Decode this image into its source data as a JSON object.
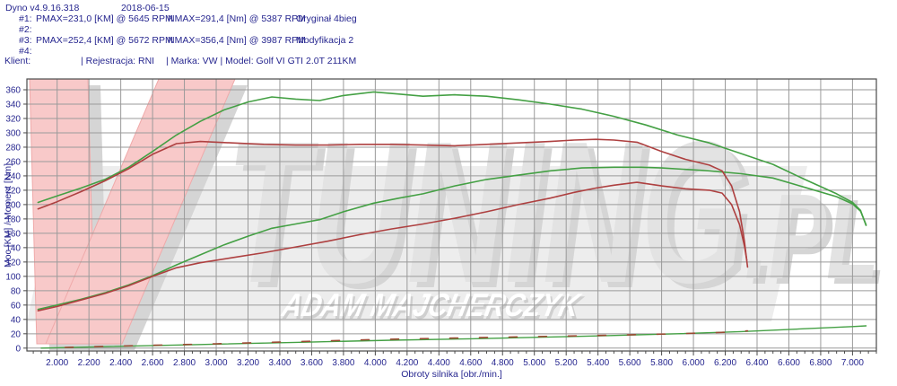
{
  "header": {
    "app": "Dyno v4.9.16.318",
    "date": "2018-06-15",
    "runs": [
      {
        "id": "#1:",
        "pmax": "PMAX=231,0 [KM] @ 5645 RPM",
        "nmax": "NMAX=291,4 [Nm] @ 5387 RPM",
        "name": "Oryginał 4bieg"
      },
      {
        "id": "#2:",
        "pmax": "",
        "nmax": "",
        "name": ""
      },
      {
        "id": "#3:",
        "pmax": "PMAX=252,4 [KM] @ 5672 RPM",
        "nmax": "NMAX=356,4 [Nm] @ 3987 RPM",
        "name": "Modyfikacja 2"
      },
      {
        "id": "#4:",
        "pmax": "",
        "nmax": "",
        "name": ""
      }
    ],
    "client": {
      "label": "Klient:",
      "registration": "| Rejestracja: RNI",
      "make_model": "| Marka: VW | Model: Golf VI GTI 2.0T 211KM"
    }
  },
  "chart_data": {
    "type": "line",
    "xlabel": "Obroty silnika [obr./min.]",
    "ylabel": "Moc [KM] / Moment [Nm]",
    "xlim": [
      1810,
      7150
    ],
    "ylim": [
      -4,
      375
    ],
    "grid": true,
    "x_ticks": {
      "values": [
        2000,
        2200,
        2400,
        2600,
        2800,
        3000,
        3200,
        3400,
        3600,
        3800,
        4000,
        4200,
        4400,
        4600,
        4800,
        5000,
        5200,
        5400,
        5600,
        5800,
        6000,
        6200,
        6400,
        6600,
        6800,
        7000
      ],
      "labels": [
        "2.000",
        "2.200",
        "2.400",
        "2.600",
        "2.800",
        "3.000",
        "3.200",
        "3.400",
        "3.600",
        "3.800",
        "4.000",
        "4.200",
        "4.400",
        "4.600",
        "4.800",
        "5.000",
        "5.200",
        "5.400",
        "5.600",
        "5.800",
        "6.000",
        "6.200",
        "6.400",
        "6.600",
        "6.800",
        "7.000"
      ],
      "minor_step": 50
    },
    "y_ticks": {
      "values": [
        0,
        20,
        40,
        60,
        80,
        100,
        120,
        140,
        160,
        180,
        200,
        220,
        240,
        260,
        280,
        300,
        320,
        340,
        360
      ],
      "labels": [
        "0",
        "20",
        "40",
        "60",
        "80",
        "100",
        "120",
        "140",
        "160",
        "180",
        "200",
        "220",
        "240",
        "260",
        "280",
        "300",
        "320",
        "340",
        "360"
      ]
    },
    "colors": {
      "grid": "#9a9a9a",
      "border": "#4a4a4a",
      "axis_text": "#26268f",
      "green": "#44a044",
      "red": "#ae4040",
      "aux_red": "#9b4a33"
    },
    "series": [
      {
        "name": "aux-modified",
        "color": "#44a044",
        "width": 1.4,
        "dash": "",
        "points": [
          [
            1900,
            0
          ],
          [
            2300,
            2
          ],
          [
            2900,
            5
          ],
          [
            3500,
            8
          ],
          [
            4100,
            11
          ],
          [
            4600,
            13
          ],
          [
            5000,
            15
          ],
          [
            5400,
            17
          ],
          [
            5900,
            20
          ],
          [
            6300,
            23
          ],
          [
            6700,
            27
          ],
          [
            7000,
            30
          ],
          [
            7085,
            31
          ]
        ]
      },
      {
        "name": "aux-original",
        "color": "#9b4a33",
        "width": 1.6,
        "dash": "9 24",
        "points": [
          [
            2050,
            1
          ],
          [
            2600,
            4
          ],
          [
            3000,
            6
          ],
          [
            3500,
            9
          ],
          [
            4000,
            12
          ],
          [
            4500,
            14
          ],
          [
            5000,
            16
          ],
          [
            5500,
            18
          ],
          [
            5900,
            20
          ],
          [
            6200,
            22
          ],
          [
            6340,
            24
          ]
        ]
      },
      {
        "name": "moc-modyfikacja-2",
        "color": "#44a044",
        "width": 1.6,
        "dash": "",
        "points": [
          [
            1880,
            54
          ],
          [
            2000,
            60
          ],
          [
            2150,
            68
          ],
          [
            2300,
            77
          ],
          [
            2450,
            88
          ],
          [
            2600,
            101
          ],
          [
            2750,
            116
          ],
          [
            2900,
            130
          ],
          [
            3050,
            144
          ],
          [
            3200,
            156
          ],
          [
            3350,
            167
          ],
          [
            3500,
            173
          ],
          [
            3650,
            179
          ],
          [
            3800,
            190
          ],
          [
            3990,
            202
          ],
          [
            4150,
            209
          ],
          [
            4300,
            215
          ],
          [
            4500,
            226
          ],
          [
            4700,
            235
          ],
          [
            4900,
            241
          ],
          [
            5100,
            247
          ],
          [
            5300,
            251
          ],
          [
            5500,
            252
          ],
          [
            5672,
            252
          ],
          [
            5800,
            251
          ],
          [
            5950,
            249
          ],
          [
            6100,
            247
          ],
          [
            6300,
            243
          ],
          [
            6500,
            237
          ],
          [
            6700,
            224
          ],
          [
            6900,
            211
          ],
          [
            7000,
            201
          ],
          [
            7050,
            191
          ],
          [
            7085,
            172
          ]
        ]
      },
      {
        "name": "moment-modyfikacja-2",
        "color": "#44a044",
        "width": 1.6,
        "dash": "",
        "points": [
          [
            1880,
            203
          ],
          [
            2000,
            212
          ],
          [
            2150,
            223
          ],
          [
            2300,
            235
          ],
          [
            2450,
            252
          ],
          [
            2600,
            274
          ],
          [
            2750,
            297
          ],
          [
            2900,
            316
          ],
          [
            3050,
            332
          ],
          [
            3200,
            343
          ],
          [
            3350,
            350
          ],
          [
            3500,
            347
          ],
          [
            3650,
            345
          ],
          [
            3800,
            352
          ],
          [
            3990,
            357
          ],
          [
            4150,
            354
          ],
          [
            4300,
            351
          ],
          [
            4500,
            353
          ],
          [
            4700,
            351
          ],
          [
            4900,
            346
          ],
          [
            5100,
            340
          ],
          [
            5300,
            333
          ],
          [
            5500,
            323
          ],
          [
            5700,
            311
          ],
          [
            5900,
            297
          ],
          [
            6100,
            286
          ],
          [
            6300,
            271
          ],
          [
            6500,
            256
          ],
          [
            6700,
            235
          ],
          [
            6900,
            215
          ],
          [
            7000,
            203
          ],
          [
            7050,
            192
          ],
          [
            7085,
            171
          ]
        ]
      },
      {
        "name": "moment-oryginal",
        "color": "#ae4040",
        "width": 1.6,
        "dash": "",
        "points": [
          [
            1880,
            194
          ],
          [
            2000,
            204
          ],
          [
            2150,
            218
          ],
          [
            2300,
            233
          ],
          [
            2450,
            250
          ],
          [
            2600,
            270
          ],
          [
            2750,
            285
          ],
          [
            2900,
            288
          ],
          [
            3100,
            286
          ],
          [
            3300,
            284
          ],
          [
            3500,
            283
          ],
          [
            3700,
            283
          ],
          [
            3900,
            284
          ],
          [
            4100,
            284
          ],
          [
            4300,
            283
          ],
          [
            4500,
            282
          ],
          [
            4700,
            284
          ],
          [
            4900,
            286
          ],
          [
            5100,
            288
          ],
          [
            5250,
            290
          ],
          [
            5387,
            291
          ],
          [
            5500,
            290
          ],
          [
            5645,
            287
          ],
          [
            5800,
            274
          ],
          [
            5950,
            263
          ],
          [
            6100,
            255
          ],
          [
            6180,
            247
          ],
          [
            6240,
            226
          ],
          [
            6290,
            190
          ],
          [
            6320,
            150
          ],
          [
            6340,
            113
          ]
        ]
      },
      {
        "name": "moc-oryginal",
        "color": "#ae4040",
        "width": 1.6,
        "dash": "",
        "points": [
          [
            1880,
            52
          ],
          [
            2000,
            58
          ],
          [
            2150,
            67
          ],
          [
            2300,
            76
          ],
          [
            2450,
            87
          ],
          [
            2600,
            100
          ],
          [
            2750,
            112
          ],
          [
            2900,
            119
          ],
          [
            3100,
            126
          ],
          [
            3300,
            133
          ],
          [
            3500,
            141
          ],
          [
            3700,
            149
          ],
          [
            3900,
            158
          ],
          [
            4100,
            166
          ],
          [
            4300,
            173
          ],
          [
            4500,
            181
          ],
          [
            4700,
            190
          ],
          [
            4900,
            200
          ],
          [
            5100,
            209
          ],
          [
            5250,
            217
          ],
          [
            5387,
            223
          ],
          [
            5500,
            227
          ],
          [
            5645,
            231
          ],
          [
            5800,
            226
          ],
          [
            5950,
            222
          ],
          [
            6100,
            220
          ],
          [
            6180,
            216
          ],
          [
            6240,
            200
          ],
          [
            6290,
            172
          ],
          [
            6320,
            143
          ],
          [
            6335,
            123
          ]
        ]
      }
    ],
    "watermark": {
      "text": "TUNING",
      "suffix": ".PL",
      "author": "ADAM MAJCHERCZYK",
      "band_color": "#ededed",
      "letter_color": "#e3e3e3",
      "shadow_color": "#d5d5d5",
      "pink_fill": "#f8c9c9",
      "pink_edge": "#efaaaa",
      "author_fill": "#ffffff",
      "author_shadow": "#cfcfcf"
    }
  }
}
